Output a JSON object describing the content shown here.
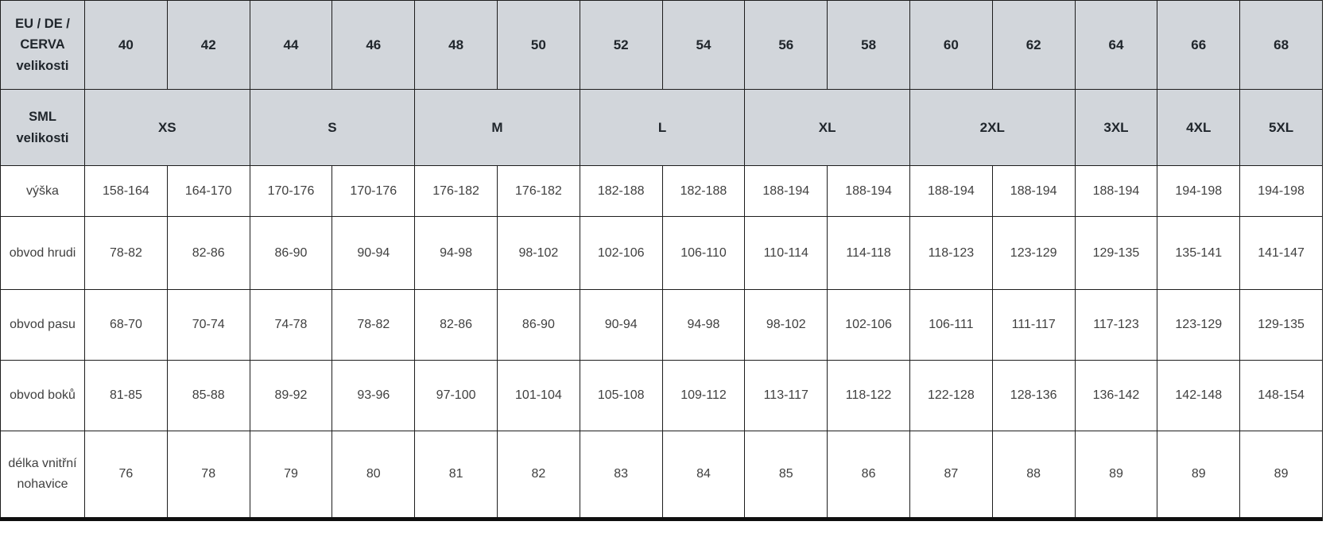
{
  "chart_data": {
    "type": "table",
    "header_rows": [
      {
        "label": "EU / DE / CERVA velikosti",
        "cells": [
          {
            "text": "40",
            "span": 1
          },
          {
            "text": "42",
            "span": 1
          },
          {
            "text": "44",
            "span": 1
          },
          {
            "text": "46",
            "span": 1
          },
          {
            "text": "48",
            "span": 1
          },
          {
            "text": "50",
            "span": 1
          },
          {
            "text": "52",
            "span": 1
          },
          {
            "text": "54",
            "span": 1
          },
          {
            "text": "56",
            "span": 1
          },
          {
            "text": "58",
            "span": 1
          },
          {
            "text": "60",
            "span": 1
          },
          {
            "text": "62",
            "span": 1
          },
          {
            "text": "64",
            "span": 1
          },
          {
            "text": "66",
            "span": 1
          },
          {
            "text": "68",
            "span": 1
          }
        ]
      },
      {
        "label": "SML velikosti",
        "cells": [
          {
            "text": "XS",
            "span": 2
          },
          {
            "text": "S",
            "span": 2
          },
          {
            "text": "M",
            "span": 2
          },
          {
            "text": "L",
            "span": 2
          },
          {
            "text": "XL",
            "span": 2
          },
          {
            "text": "2XL",
            "span": 2
          },
          {
            "text": "3XL",
            "span": 1
          },
          {
            "text": "4XL",
            "span": 1
          },
          {
            "text": "5XL",
            "span": 1
          }
        ]
      }
    ],
    "rows": [
      {
        "label": "výška",
        "values": [
          "158-164",
          "164-170",
          "170-176",
          "170-176",
          "176-182",
          "176-182",
          "182-188",
          "182-188",
          "188-194",
          "188-194",
          "188-194",
          "188-194",
          "188-194",
          "194-198",
          "194-198"
        ]
      },
      {
        "label": "obvod hrudi",
        "values": [
          "78-82",
          "82-86",
          "86-90",
          "90-94",
          "94-98",
          "98-102",
          "102-106",
          "106-110",
          "110-114",
          "114-118",
          "118-123",
          "123-129",
          "129-135",
          "135-141",
          "141-147"
        ]
      },
      {
        "label": "obvod pasu",
        "values": [
          "68-70",
          "70-74",
          "74-78",
          "78-82",
          "82-86",
          "86-90",
          "90-94",
          "94-98",
          "98-102",
          "102-106",
          "106-111",
          "111-117",
          "117-123",
          "123-129",
          "129-135"
        ]
      },
      {
        "label": "obvod boků",
        "values": [
          "81-85",
          "85-88",
          "89-92",
          "93-96",
          "97-100",
          "101-104",
          "105-108",
          "109-112",
          "113-117",
          "118-122",
          "122-128",
          "128-136",
          "136-142",
          "142-148",
          "148-154"
        ]
      },
      {
        "label": "délka vnitřní nohavice",
        "values": [
          "76",
          "78",
          "79",
          "80",
          "81",
          "82",
          "83",
          "84",
          "85",
          "86",
          "87",
          "88",
          "89",
          "89",
          "89"
        ]
      }
    ]
  },
  "colors": {
    "header_bg": "#d2d6db",
    "label_bg": "#eef0f1",
    "cell_bg": "#ffffff",
    "grid_border": "#1d1d1d",
    "bottom_border": "#0f0f0f",
    "header_text": "#20262c",
    "data_text": "#404040"
  }
}
